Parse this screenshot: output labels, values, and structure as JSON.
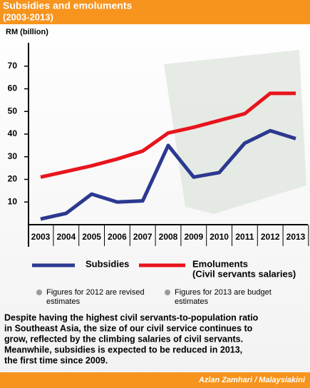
{
  "header": {
    "title": "Subsidies and emoluments",
    "subtitle": "(2003-2013)"
  },
  "chart_data": {
    "type": "line",
    "y_label": "RM (billion)",
    "categories": [
      "2003",
      "2004",
      "2005",
      "2006",
      "2007",
      "2008",
      "2009",
      "2010",
      "2011",
      "2012",
      "2013"
    ],
    "series": [
      {
        "name": "Subsidies",
        "color": "#2b3990",
        "values": [
          2.5,
          5,
          13.5,
          10,
          10.5,
          35,
          21,
          23,
          36,
          41.5,
          38
        ]
      },
      {
        "name": "Emoluments",
        "description": "(Civil servants salaries)",
        "color": "#e8141c",
        "values": [
          21,
          23.5,
          26,
          29,
          32.5,
          40.5,
          43,
          46,
          49,
          58,
          58
        ]
      }
    ],
    "ylim": [
      0,
      80
    ],
    "yticks": [
      10,
      20,
      30,
      40,
      50,
      60,
      70
    ]
  },
  "notes": [
    [
      "Figures for 2012 are revised",
      "estimates"
    ],
    [
      "Figures for 2013 are budget",
      "estimates"
    ]
  ],
  "body": [
    "Despite having the highest civil servants-to-population ratio",
    "in Southeast Asia, the size of our civil service continues to",
    "grow, reflected by the climbing salaries of civil servants.",
    "Meanwhile, subsidies is expected to be reduced in 2013,",
    "the first time since 2009."
  ],
  "credit": "Azlan Zamhari / Malaysiakini"
}
